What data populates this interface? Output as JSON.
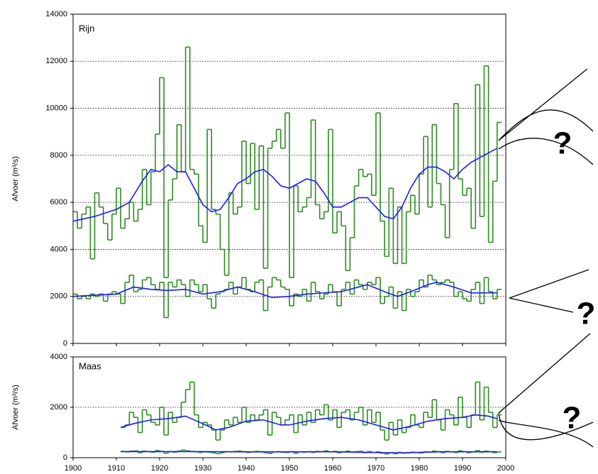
{
  "chart_data": [
    {
      "type": "step",
      "title": "Rijn",
      "ylabel": "Afvoer (m³/s)",
      "xlim": [
        1900,
        2000
      ],
      "xticks": [
        1900,
        1910,
        1920,
        1930,
        1940,
        1950,
        1960,
        1970,
        1980,
        1990,
        2000
      ],
      "ylim": [
        0,
        14000
      ],
      "yticks": [
        0,
        2000,
        4000,
        6000,
        8000,
        10000,
        12000,
        14000
      ],
      "grid": true,
      "show_xtick_labels": false,
      "x": [
        1900,
        1901,
        1902,
        1903,
        1904,
        1905,
        1906,
        1907,
        1908,
        1909,
        1910,
        1911,
        1912,
        1913,
        1914,
        1915,
        1916,
        1917,
        1918,
        1919,
        1920,
        1921,
        1922,
        1923,
        1924,
        1925,
        1926,
        1927,
        1928,
        1929,
        1930,
        1931,
        1932,
        1933,
        1934,
        1935,
        1936,
        1937,
        1938,
        1939,
        1940,
        1941,
        1942,
        1943,
        1944,
        1945,
        1946,
        1947,
        1948,
        1949,
        1950,
        1951,
        1952,
        1953,
        1954,
        1955,
        1956,
        1957,
        1958,
        1959,
        1960,
        1961,
        1962,
        1963,
        1964,
        1965,
        1966,
        1967,
        1968,
        1969,
        1970,
        1971,
        1972,
        1973,
        1974,
        1975,
        1976,
        1977,
        1978,
        1979,
        1980,
        1981,
        1982,
        1983,
        1984,
        1985,
        1986,
        1987,
        1988,
        1989,
        1990,
        1991,
        1992,
        1993,
        1994,
        1995,
        1996,
        1997,
        1998
      ],
      "series": [
        {
          "color": "#2e8b22",
          "values": [
            5600,
            4900,
            5500,
            5800,
            3600,
            6400,
            5800,
            5100,
            4400,
            5500,
            6600,
            4900,
            5300,
            6000,
            5200,
            5700,
            7400,
            5900,
            7300,
            8900,
            11300,
            2800,
            6100,
            7000,
            9300,
            7300,
            12600,
            7400,
            7200,
            5000,
            4300,
            9100,
            5700,
            5500,
            4000,
            2900,
            6400,
            5500,
            5800,
            8600,
            6800,
            8500,
            5700,
            8400,
            3200,
            8300,
            8600,
            9100,
            8300,
            9800,
            2800,
            6700,
            5600,
            5800,
            6200,
            9500,
            5900,
            5300,
            5600,
            9100,
            4700,
            5600,
            5000,
            3100,
            4500,
            6700,
            7400,
            7100,
            7200,
            6300,
            9800,
            5200,
            3700,
            6600,
            3400,
            5800,
            3400,
            5600,
            6300,
            5500,
            7200,
            8800,
            5800,
            9300,
            6800,
            5900,
            4500,
            7400,
            10200,
            7000,
            6300,
            6600,
            4900,
            11000,
            5400,
            11800,
            4300,
            6900,
            9400
          ]
        },
        {
          "color": "#2e8b22",
          "values": [
            2100,
            1900,
            2000,
            1900,
            2100,
            2000,
            2100,
            1800,
            2100,
            2200,
            2100,
            1700,
            2600,
            2900,
            2200,
            2300,
            2700,
            2800,
            2500,
            2300,
            2600,
            1100,
            2600,
            2400,
            2700,
            2500,
            2000,
            2700,
            2500,
            2200,
            2500,
            1900,
            1500,
            2100,
            2200,
            2300,
            2600,
            2100,
            2400,
            2800,
            2300,
            2200,
            2600,
            2700,
            1400,
            2400,
            2800,
            2700,
            2400,
            2300,
            1600,
            2100,
            2000,
            2300,
            1800,
            2600,
            2200,
            1900,
            2100,
            2500,
            2200,
            1600,
            2300,
            2600,
            2100,
            2700,
            2500,
            2300,
            2600,
            2500,
            2800,
            1700,
            2000,
            2400,
            1500,
            2200,
            1400,
            2300,
            2000,
            2200,
            2700,
            2400,
            2900,
            2700,
            2500,
            2600,
            2700,
            2600,
            2000,
            2200,
            1900,
            1800,
            2300,
            2600,
            1700,
            2800,
            2200,
            1900,
            2300
          ]
        }
      ],
      "smooth": [
        {
          "color": "#1a1aff",
          "x": [
            1900,
            1905,
            1910,
            1913,
            1916,
            1918,
            1920,
            1922,
            1924,
            1926,
            1928,
            1930,
            1932,
            1934,
            1936,
            1938,
            1940,
            1942,
            1944,
            1946,
            1948,
            1950,
            1952,
            1954,
            1956,
            1958,
            1960,
            1962,
            1964,
            1966,
            1968,
            1970,
            1972,
            1974,
            1976,
            1978,
            1980,
            1982,
            1984,
            1986,
            1988,
            1990,
            1992,
            1994,
            1996,
            1998
          ],
          "values": [
            5200,
            5400,
            5700,
            6000,
            6900,
            7400,
            7300,
            7600,
            7300,
            7300,
            6600,
            5900,
            5600,
            5700,
            6200,
            6800,
            7000,
            7300,
            7400,
            7100,
            6700,
            6600,
            6800,
            7000,
            6900,
            6400,
            5800,
            5800,
            6000,
            6200,
            6200,
            5800,
            5400,
            5300,
            5800,
            6600,
            7200,
            7500,
            7500,
            7300,
            7000,
            7400,
            7700,
            7900,
            8100,
            8300
          ]
        },
        {
          "color": "#1a1aff",
          "x": [
            1900,
            1905,
            1910,
            1914,
            1918,
            1922,
            1926,
            1930,
            1934,
            1938,
            1942,
            1946,
            1950,
            1954,
            1958,
            1962,
            1966,
            1968,
            1972,
            1975,
            1978,
            1982,
            1984,
            1988,
            1992,
            1998
          ],
          "values": [
            2000,
            2050,
            2100,
            2400,
            2300,
            2250,
            2300,
            2100,
            2200,
            2400,
            2200,
            1950,
            2000,
            2100,
            2150,
            2200,
            2400,
            2500,
            2200,
            2000,
            2200,
            2500,
            2600,
            2400,
            2150,
            2150
          ]
        }
      ]
    },
    {
      "type": "step",
      "title": "Maas",
      "ylabel": "Afvoer (m³/s)",
      "xlim": [
        1900,
        2000
      ],
      "xticks": [
        1900,
        1910,
        1920,
        1930,
        1940,
        1950,
        1960,
        1970,
        1980,
        1990,
        2000
      ],
      "ylim": [
        0,
        4000
      ],
      "yticks": [
        0,
        2000,
        4000
      ],
      "grid": true,
      "show_xtick_labels": true,
      "x": [
        1911,
        1912,
        1913,
        1914,
        1915,
        1916,
        1917,
        1918,
        1919,
        1920,
        1921,
        1922,
        1923,
        1924,
        1925,
        1926,
        1927,
        1928,
        1929,
        1930,
        1931,
        1932,
        1933,
        1934,
        1935,
        1936,
        1937,
        1938,
        1939,
        1940,
        1941,
        1942,
        1943,
        1944,
        1945,
        1946,
        1947,
        1948,
        1949,
        1950,
        1951,
        1952,
        1953,
        1954,
        1955,
        1956,
        1957,
        1958,
        1959,
        1960,
        1961,
        1962,
        1963,
        1964,
        1965,
        1966,
        1967,
        1968,
        1969,
        1970,
        1971,
        1972,
        1973,
        1974,
        1975,
        1976,
        1977,
        1978,
        1979,
        1980,
        1981,
        1982,
        1983,
        1984,
        1985,
        1986,
        1987,
        1988,
        1989,
        1990,
        1991,
        1992,
        1993,
        1994,
        1995,
        1996,
        1997,
        1998
      ],
      "series": [
        {
          "color": "#2e8b22",
          "values": [
            1200,
            1300,
            1800,
            1600,
            1000,
            1900,
            1700,
            1400,
            1300,
            2000,
            900,
            1800,
            1400,
            1600,
            2200,
            2700,
            3000,
            1700,
            1200,
            1400,
            1300,
            1100,
            700,
            1100,
            1500,
            1300,
            1600,
            1400,
            2000,
            1400,
            1700,
            1500,
            1700,
            1900,
            900,
            1800,
            1600,
            1300,
            1500,
            1700,
            1000,
            1700,
            1300,
            1800,
            1400,
            1900,
            1700,
            2100,
            1500,
            1900,
            1200,
            1800,
            1900,
            1500,
            1800,
            2000,
            1300,
            1900,
            1400,
            1800,
            1100,
            700,
            1400,
            900,
            1500,
            1000,
            1200,
            1700,
            1300,
            1200,
            1800,
            1600,
            2300,
            1500,
            1100,
            1900,
            1700,
            1300,
            2400,
            1600,
            1200,
            1700,
            3000,
            1500,
            2800,
            1800,
            1200,
            1700
          ]
        },
        {
          "color": "#2e8b22",
          "values": [
            250,
            230,
            260,
            270,
            200,
            260,
            240,
            220,
            280,
            250,
            180,
            240,
            220,
            260,
            300,
            270,
            250,
            230,
            210,
            230,
            220,
            190,
            160,
            200,
            240,
            230,
            250,
            260,
            240,
            210,
            230,
            250,
            240,
            200,
            170,
            230,
            240,
            220,
            210,
            240,
            180,
            230,
            220,
            240,
            210,
            250,
            240,
            270,
            230,
            250,
            200,
            230,
            260,
            220,
            240,
            250,
            200,
            240,
            210,
            230,
            180,
            150,
            200,
            160,
            210,
            180,
            190,
            220,
            200,
            190,
            230,
            220,
            260,
            240,
            200,
            250,
            230,
            210,
            270,
            240,
            200,
            230,
            280,
            220,
            260,
            240,
            200,
            230
          ]
        }
      ],
      "smooth": [
        {
          "color": "#1a1aff",
          "x": [
            1911,
            1914,
            1918,
            1922,
            1926,
            1930,
            1933,
            1936,
            1940,
            1944,
            1948,
            1950,
            1954,
            1958,
            1962,
            1966,
            1970,
            1974,
            1978,
            1982,
            1986,
            1990,
            1993,
            1996,
            1998
          ],
          "values": [
            1200,
            1350,
            1500,
            1550,
            1650,
            1350,
            1100,
            1200,
            1450,
            1500,
            1300,
            1300,
            1450,
            1550,
            1600,
            1500,
            1300,
            1100,
            1250,
            1450,
            1550,
            1600,
            1700,
            1650,
            1550
          ]
        },
        {
          "color": "#1a1aff",
          "x": [
            1911,
            1930,
            1940,
            1960,
            1975,
            1985,
            1998
          ],
          "values": [
            240,
            240,
            230,
            235,
            190,
            235,
            235
          ]
        }
      ]
    }
  ],
  "annotations": [
    "?",
    "?",
    "?"
  ]
}
